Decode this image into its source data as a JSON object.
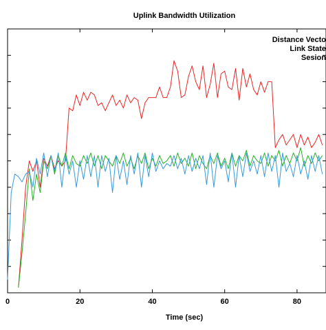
{
  "chart_data": {
    "type": "line",
    "title": "Uplink Bandwidth Utilization",
    "xlabel": "Time (sec)",
    "ylabel": "",
    "xlim": [
      0,
      88
    ],
    "ylim": [
      0,
      100
    ],
    "x_ticks": [
      0,
      20,
      40,
      60,
      80
    ],
    "y_ticks": [
      0,
      10,
      20,
      30,
      40,
      50,
      60,
      70,
      80,
      90,
      100
    ],
    "grid": false,
    "legend_position": "top-right",
    "series": [
      {
        "name": "Distance Vecto",
        "color": "#ee2222",
        "points": [
          [
            3,
            2
          ],
          [
            4,
            20
          ],
          [
            5,
            40
          ],
          [
            6,
            50
          ],
          [
            7,
            46
          ],
          [
            8,
            50
          ],
          [
            9,
            40
          ],
          [
            10,
            51
          ],
          [
            11,
            48
          ],
          [
            12,
            52
          ],
          [
            13,
            47
          ],
          [
            14,
            50
          ],
          [
            15,
            48
          ],
          [
            16,
            50
          ],
          [
            17,
            70
          ],
          [
            18,
            69
          ],
          [
            19,
            75
          ],
          [
            20,
            71
          ],
          [
            21,
            76
          ],
          [
            22,
            73
          ],
          [
            23,
            76
          ],
          [
            24,
            75
          ],
          [
            25,
            71
          ],
          [
            26,
            72
          ],
          [
            27,
            69
          ],
          [
            28,
            72
          ],
          [
            29,
            75
          ],
          [
            30,
            71
          ],
          [
            31,
            73
          ],
          [
            32,
            70
          ],
          [
            33,
            75
          ],
          [
            34,
            72
          ],
          [
            35,
            74
          ],
          [
            36,
            73
          ],
          [
            37,
            66
          ],
          [
            38,
            72
          ],
          [
            39,
            74
          ],
          [
            40,
            74
          ],
          [
            41,
            74
          ],
          [
            42,
            78
          ],
          [
            43,
            74
          ],
          [
            44,
            74
          ],
          [
            45,
            78
          ],
          [
            46,
            88
          ],
          [
            47,
            84
          ],
          [
            48,
            74
          ],
          [
            49,
            75
          ],
          [
            50,
            82
          ],
          [
            51,
            86
          ],
          [
            52,
            80
          ],
          [
            53,
            77
          ],
          [
            54,
            86
          ],
          [
            55,
            74
          ],
          [
            56,
            79
          ],
          [
            57,
            87
          ],
          [
            58,
            74
          ],
          [
            59,
            83
          ],
          [
            60,
            84
          ],
          [
            61,
            78
          ],
          [
            62,
            77
          ],
          [
            63,
            85
          ],
          [
            64,
            73
          ],
          [
            65,
            85
          ],
          [
            66,
            78
          ],
          [
            67,
            83
          ],
          [
            68,
            77
          ],
          [
            69,
            75
          ],
          [
            70,
            80
          ],
          [
            71,
            76
          ],
          [
            72,
            80
          ],
          [
            73,
            80
          ],
          [
            74,
            55
          ],
          [
            75,
            58
          ],
          [
            76,
            60
          ],
          [
            77,
            56
          ],
          [
            78,
            58
          ],
          [
            79,
            60
          ],
          [
            80,
            55
          ],
          [
            81,
            60
          ],
          [
            82,
            56
          ],
          [
            83,
            59
          ],
          [
            84,
            55
          ],
          [
            85,
            57
          ],
          [
            86,
            60
          ],
          [
            87,
            56
          ]
        ]
      },
      {
        "name": "Link State",
        "color": "#22b022",
        "points": [
          [
            3,
            2
          ],
          [
            4,
            15
          ],
          [
            5,
            30
          ],
          [
            6,
            47
          ],
          [
            7,
            35
          ],
          [
            8,
            45
          ],
          [
            9,
            38
          ],
          [
            10,
            50
          ],
          [
            11,
            47
          ],
          [
            12,
            52
          ],
          [
            13,
            45
          ],
          [
            14,
            52
          ],
          [
            15,
            48
          ],
          [
            16,
            53
          ],
          [
            17,
            47
          ],
          [
            18,
            52
          ],
          [
            19,
            49
          ],
          [
            20,
            48
          ],
          [
            21,
            52
          ],
          [
            22,
            49
          ],
          [
            23,
            53
          ],
          [
            24,
            48
          ],
          [
            25,
            52
          ],
          [
            26,
            47
          ],
          [
            27,
            52
          ],
          [
            28,
            50
          ],
          [
            29,
            48
          ],
          [
            30,
            52
          ],
          [
            31,
            49
          ],
          [
            32,
            53
          ],
          [
            33,
            48
          ],
          [
            34,
            51
          ],
          [
            35,
            47
          ],
          [
            36,
            52
          ],
          [
            37,
            49
          ],
          [
            38,
            53
          ],
          [
            39,
            47
          ],
          [
            40,
            51
          ],
          [
            41,
            48
          ],
          [
            42,
            52
          ],
          [
            43,
            49
          ],
          [
            44,
            50
          ],
          [
            45,
            52
          ],
          [
            46,
            48
          ],
          [
            47,
            53
          ],
          [
            48,
            49
          ],
          [
            49,
            51
          ],
          [
            50,
            48
          ],
          [
            51,
            53
          ],
          [
            52,
            47
          ],
          [
            53,
            52
          ],
          [
            54,
            49
          ],
          [
            55,
            47
          ],
          [
            56,
            52
          ],
          [
            57,
            49
          ],
          [
            58,
            53
          ],
          [
            59,
            48
          ],
          [
            60,
            51
          ],
          [
            61,
            47
          ],
          [
            62,
            53
          ],
          [
            63,
            48
          ],
          [
            64,
            52
          ],
          [
            65,
            50
          ],
          [
            66,
            54
          ],
          [
            67,
            48
          ],
          [
            68,
            52
          ],
          [
            69,
            50
          ],
          [
            70,
            49
          ],
          [
            71,
            53
          ],
          [
            72,
            48
          ],
          [
            73,
            52
          ],
          [
            74,
            50
          ],
          [
            75,
            54
          ],
          [
            76,
            48
          ],
          [
            77,
            52
          ],
          [
            78,
            49
          ],
          [
            79,
            53
          ],
          [
            80,
            50
          ],
          [
            81,
            55
          ],
          [
            82,
            48
          ],
          [
            83,
            52
          ],
          [
            84,
            49
          ],
          [
            85,
            53
          ],
          [
            86,
            50
          ],
          [
            87,
            52
          ]
        ]
      },
      {
        "name": "Sesion",
        "color": "#3399dd",
        "points": [
          [
            0,
            5
          ],
          [
            1,
            38
          ],
          [
            2,
            45
          ],
          [
            3,
            44
          ],
          [
            4,
            42
          ],
          [
            5,
            45
          ],
          [
            6,
            46
          ],
          [
            7,
            40
          ],
          [
            8,
            51
          ],
          [
            9,
            45
          ],
          [
            10,
            53
          ],
          [
            11,
            44
          ],
          [
            12,
            52
          ],
          [
            13,
            46
          ],
          [
            14,
            53
          ],
          [
            15,
            40
          ],
          [
            16,
            52
          ],
          [
            17,
            45
          ],
          [
            18,
            50
          ],
          [
            19,
            40
          ],
          [
            20,
            50
          ],
          [
            21,
            43
          ],
          [
            22,
            52
          ],
          [
            23,
            44
          ],
          [
            24,
            52
          ],
          [
            25,
            40
          ],
          [
            26,
            52
          ],
          [
            27,
            46
          ],
          [
            28,
            51
          ],
          [
            29,
            38
          ],
          [
            30,
            52
          ],
          [
            31,
            43
          ],
          [
            32,
            50
          ],
          [
            33,
            41
          ],
          [
            34,
            52
          ],
          [
            35,
            45
          ],
          [
            36,
            53
          ],
          [
            37,
            40
          ],
          [
            38,
            52
          ],
          [
            39,
            44
          ],
          [
            40,
            53
          ],
          [
            41,
            46
          ],
          [
            42,
            50
          ],
          [
            43,
            47
          ],
          [
            44,
            49
          ],
          [
            45,
            48
          ],
          [
            46,
            52
          ],
          [
            47,
            47
          ],
          [
            48,
            51
          ],
          [
            49,
            45
          ],
          [
            50,
            52
          ],
          [
            51,
            46
          ],
          [
            52,
            51
          ],
          [
            53,
            47
          ],
          [
            54,
            52
          ],
          [
            55,
            41
          ],
          [
            56,
            53
          ],
          [
            57,
            40
          ],
          [
            58,
            52
          ],
          [
            59,
            47
          ],
          [
            60,
            50
          ],
          [
            61,
            42
          ],
          [
            62,
            53
          ],
          [
            63,
            40
          ],
          [
            64,
            52
          ],
          [
            65,
            44
          ],
          [
            66,
            53
          ],
          [
            67,
            46
          ],
          [
            68,
            50
          ],
          [
            69,
            45
          ],
          [
            70,
            52
          ],
          [
            71,
            44
          ],
          [
            72,
            53
          ],
          [
            73,
            46
          ],
          [
            74,
            52
          ],
          [
            75,
            40
          ],
          [
            76,
            53
          ],
          [
            77,
            46
          ],
          [
            78,
            49
          ],
          [
            79,
            44
          ],
          [
            80,
            52
          ],
          [
            81,
            45
          ],
          [
            82,
            50
          ],
          [
            83,
            43
          ],
          [
            84,
            52
          ],
          [
            85,
            46
          ],
          [
            86,
            52
          ],
          [
            87,
            45
          ]
        ]
      }
    ]
  }
}
